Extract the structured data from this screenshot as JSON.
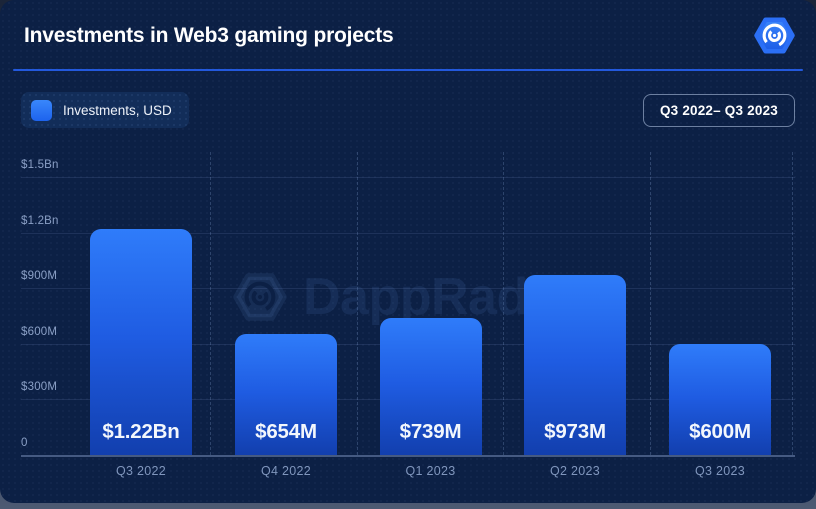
{
  "header": {
    "title": "Investments in Web3 gaming projects",
    "logo_icon": "dappradar-hexagon-logo"
  },
  "controls": {
    "legend": {
      "label": "Investments, USD",
      "swatch_color": "#2979f8"
    },
    "range_badge": {
      "label": "Q3 2022– Q3 2023"
    }
  },
  "watermark": {
    "text": "DappRadar"
  },
  "chart_data": {
    "type": "bar",
    "title": "Investments in Web3 gaming projects",
    "series_name": "Investments, USD",
    "categories": [
      "Q3 2022",
      "Q4 2022",
      "Q1 2023",
      "Q2 2023",
      "Q3 2023"
    ],
    "values_usd_millions": [
      1220,
      654,
      739,
      973,
      600
    ],
    "bar_labels": [
      "$1.22Bn",
      "$654M",
      "$739M",
      "$973M",
      "$600M"
    ],
    "y_axis": {
      "tick_labels": [
        "$1.5Bn",
        "$1.2Bn",
        "$900M",
        "$600M",
        "$300M",
        "0"
      ],
      "tick_values_millions": [
        1500,
        1200,
        900,
        600,
        300,
        0
      ],
      "ylim": [
        0,
        1500
      ]
    },
    "grid": {
      "horizontal": "solid",
      "vertical": "dashed"
    },
    "legend_position": "top-left",
    "bar_gradient": [
      "#2f7cfa",
      "#123fae"
    ]
  },
  "colors": {
    "card_bg": "#0c2045",
    "accent_blue": "#2b6ff6",
    "divider_blue": "#2359dd",
    "axis_text": "#8ba0c6",
    "category_text": "#8096bd"
  }
}
